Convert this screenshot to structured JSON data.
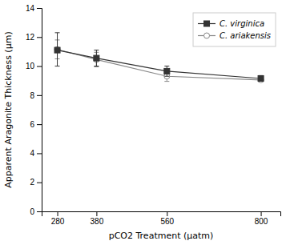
{
  "chart_data": {
    "type": "line",
    "x_label": "pCO2 Treatment (μatm)",
    "y_label": "Apparent Aragonite Thickness (μm)",
    "x": [
      280,
      380,
      560,
      800
    ],
    "series": [
      {
        "name": "C. virginica",
        "color": "#333333",
        "marker": "square",
        "values": [
          11.1,
          10.55,
          9.65,
          9.15
        ],
        "yerr_lower": [
          1.1,
          0.55,
          0.35,
          0.15
        ],
        "yerr_upper": [
          1.2,
          0.55,
          0.35,
          0.2
        ]
      },
      {
        "name": "C. ariakensis",
        "color": "#888888",
        "marker": "open-circle",
        "values": [
          11.15,
          10.45,
          9.3,
          9.05
        ],
        "yerr_lower": [
          0.65,
          0.5,
          0.35,
          0.15
        ],
        "yerr_upper": [
          0.65,
          0.5,
          0.35,
          0.2
        ]
      }
    ],
    "xlim": [
      240,
      850
    ],
    "xticks": [
      280,
      380,
      560,
      800
    ],
    "ylim": [
      0,
      14
    ],
    "yticks": [
      0,
      2,
      4,
      6,
      8,
      10,
      12,
      14
    ],
    "grid": false,
    "legend": "upper-right"
  }
}
